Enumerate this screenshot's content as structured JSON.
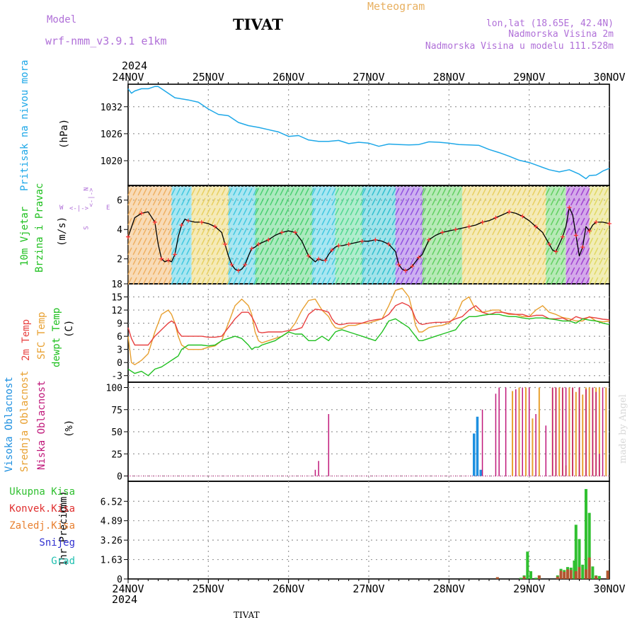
{
  "header": {
    "model_label": "Model",
    "model_name": "wrf-nmm_v3.9.1 e1km",
    "station": "TIVAT",
    "chart_type": "Meteogram",
    "lonlat": "lon,lat (18.65E, 42.4N)",
    "elevation": "Nadmorska Visina 2m",
    "model_elevation": "Nadmorska Visina u modelu 111.528m",
    "year_top": "2024",
    "year_bottom": "2024",
    "footer_station": "TIVAT",
    "watermark": "made by Angel"
  },
  "x_axis": {
    "dates": [
      "24NOV",
      "25NOV",
      "26NOV",
      "27NOV",
      "28NOV",
      "29NOV",
      "30NOV"
    ],
    "range_hours": [
      0,
      144
    ]
  },
  "colors": {
    "pressure": "#1ea8e8",
    "temp2m": "#e84040",
    "sfc_temp": "#e8a030",
    "dewpt": "#20c020",
    "wind_speed": "#000000",
    "wind_markers": "#ff3030",
    "high_cloud": "#1e90e0",
    "mid_cloud": "#e8a030",
    "low_cloud": "#c0187a",
    "total_precip": "#30c030",
    "convective": "#e03030",
    "frozen": "#e88030",
    "snow": "#3030d0",
    "hail": "#20c0b0",
    "title_purple": "#b070d8",
    "meteogram_orange": "#e8b060"
  },
  "chart_data": [
    {
      "type": "line",
      "panel": "pressure",
      "ylabel": "Pritisak na nivou mora",
      "unit": "(hPa)",
      "yticks": [
        "1020",
        "1026",
        "1032"
      ],
      "ylim": [
        1014.5,
        1037
      ],
      "x_hours": [
        0,
        1,
        2,
        4,
        6,
        8,
        9,
        12,
        14,
        18,
        21,
        24,
        27,
        30,
        33,
        36,
        39,
        42,
        45,
        48,
        51,
        54,
        57,
        60,
        63,
        66,
        69,
        72,
        75,
        78,
        81,
        84,
        87,
        90,
        93,
        96,
        99,
        102,
        105,
        108,
        111,
        114,
        117,
        120,
        123,
        126,
        129,
        132,
        135,
        137,
        138,
        140,
        141,
        142,
        144
      ],
      "series": [
        {
          "name": "Pritisak na nivou mora",
          "values": [
            1036,
            1035,
            1035.5,
            1036,
            1036,
            1036.5,
            1036.5,
            1035,
            1034,
            1033.5,
            1033,
            1031.5,
            1030.3,
            1030,
            1028.5,
            1027.8,
            1027.4,
            1026.9,
            1026.4,
            1025.4,
            1025.6,
            1024.6,
            1024.3,
            1024.3,
            1024.5,
            1023.8,
            1024.1,
            1023.9,
            1023.2,
            1023.7,
            1023.6,
            1023.5,
            1023.6,
            1024.2,
            1024.1,
            1023.9,
            1023.6,
            1023.5,
            1023.4,
            1022.5,
            1021.8,
            1021.0,
            1020.1,
            1019.6,
            1018.8,
            1018.0,
            1017.5,
            1018.0,
            1017.0,
            1016.0,
            1016.7,
            1016.8,
            1017.2,
            1017.7,
            1018.3
          ]
        }
      ]
    },
    {
      "type": "line",
      "panel": "wind",
      "ylabel": "10m Vjetar",
      "ylabel2": "Brzina i Pravac",
      "unit": "(m/s)",
      "yticks": [
        "2",
        "4",
        "6"
      ],
      "ylim": [
        0.3,
        7
      ],
      "compass": {
        "n": "N",
        "s": "S",
        "e": "E",
        "w": "W"
      },
      "x_hours": [
        0,
        2,
        4,
        6,
        8,
        9,
        10,
        11,
        12,
        13,
        14,
        15,
        16,
        17,
        18,
        20,
        22,
        24,
        26,
        28,
        29,
        30,
        31,
        32,
        33,
        34,
        35,
        36,
        37,
        38,
        39,
        40,
        42,
        44,
        46,
        48,
        50,
        52,
        54,
        56,
        57,
        58,
        59,
        60,
        61,
        62,
        63,
        64,
        66,
        68,
        70,
        72,
        74,
        76,
        78,
        80,
        81,
        82,
        83,
        84,
        85,
        86,
        87,
        88,
        90,
        92,
        94,
        96,
        98,
        100,
        102,
        104,
        106,
        108,
        110,
        112,
        114,
        116,
        118,
        120,
        122,
        124,
        126,
        127,
        128,
        129,
        130,
        131,
        132,
        133,
        134,
        135,
        136,
        137,
        138,
        139,
        140,
        142,
        144
      ],
      "series": [
        {
          "name": "10m Vjetar",
          "values": [
            3.5,
            4.8,
            5.1,
            5.2,
            4.5,
            3.0,
            2.0,
            1.8,
            1.9,
            1.8,
            2.3,
            3.5,
            4.3,
            4.7,
            4.6,
            4.5,
            4.5,
            4.4,
            4.2,
            3.8,
            3.0,
            2.2,
            1.6,
            1.3,
            1.2,
            1.3,
            1.6,
            2.2,
            2.7,
            2.8,
            3.0,
            3.1,
            3.3,
            3.6,
            3.8,
            3.9,
            3.8,
            3.2,
            2.2,
            1.8,
            2.0,
            1.9,
            1.9,
            2.3,
            2.6,
            2.8,
            2.9,
            2.9,
            3.0,
            3.1,
            3.2,
            3.2,
            3.3,
            3.2,
            3.0,
            2.5,
            1.6,
            1.3,
            1.2,
            1.3,
            1.5,
            1.8,
            2.1,
            2.3,
            3.3,
            3.6,
            3.8,
            3.9,
            4.0,
            4.1,
            4.2,
            4.3,
            4.5,
            4.6,
            4.8,
            5.0,
            5.2,
            5.1,
            4.9,
            4.6,
            4.2,
            3.8,
            3.0,
            2.6,
            2.5,
            3.0,
            3.5,
            4.2,
            5.5,
            5.0,
            3.6,
            2.2,
            2.8,
            4.2,
            3.9,
            4.3,
            4.5,
            4.5,
            4.4
          ]
        }
      ]
    },
    {
      "type": "line",
      "panel": "temperature",
      "ylabel": [
        "2m Temp",
        "SFC Temp",
        "dewpt Temp"
      ],
      "unit": "(C)",
      "yticks": [
        "-3",
        "0",
        "3",
        "6",
        "9",
        "12",
        "15",
        "18"
      ],
      "ylim": [
        -4.5,
        18
      ],
      "x_hours": [
        0,
        1,
        2,
        4,
        6,
        8,
        10,
        12,
        13,
        14,
        15,
        16,
        18,
        20,
        22,
        24,
        26,
        28,
        30,
        32,
        34,
        36,
        37,
        38,
        39,
        40,
        42,
        44,
        46,
        48,
        50,
        52,
        54,
        56,
        58,
        60,
        61,
        62,
        63,
        64,
        66,
        68,
        70,
        72,
        74,
        76,
        78,
        80,
        82,
        84,
        85,
        86,
        87,
        88,
        90,
        92,
        94,
        96,
        98,
        100,
        102,
        104,
        106,
        108,
        109,
        110,
        111,
        112,
        114,
        116,
        118,
        120,
        122,
        124,
        126,
        128,
        130,
        132,
        134,
        136,
        138,
        140,
        142,
        144
      ],
      "series": [
        {
          "name": "2m Temp",
          "values": [
            8,
            5.5,
            4,
            4,
            4,
            6,
            7.5,
            9,
            9.5,
            9,
            7,
            6,
            6,
            6,
            6,
            5.8,
            5.8,
            6,
            8,
            10,
            11.5,
            11.5,
            10.5,
            9,
            7,
            6.8,
            7,
            7,
            7,
            7.3,
            7.5,
            8,
            11,
            12.2,
            12,
            11.5,
            10,
            9,
            8.7,
            8.7,
            9,
            9,
            9,
            9.5,
            9.8,
            10,
            11,
            13,
            13.7,
            13,
            12,
            10,
            9,
            8.7,
            9,
            9.2,
            9.2,
            9.3,
            10,
            10.5,
            12,
            13,
            11.5,
            11,
            11.2,
            11.5,
            11.5,
            11.5,
            11.2,
            11,
            11,
            10.5,
            10.8,
            10.8,
            10,
            10,
            10.2,
            9.5,
            10.5,
            10,
            10.4,
            10.2,
            9.9,
            9.8
          ]
        },
        {
          "name": "SFC Temp",
          "values": [
            6,
            0,
            -0.5,
            0.5,
            2,
            7,
            11,
            12,
            11,
            9,
            6,
            4,
            3,
            3,
            3,
            3.5,
            3.8,
            5,
            9,
            13,
            14.5,
            13,
            11,
            7,
            5,
            4.5,
            5,
            5.5,
            6,
            7,
            9,
            12,
            14.2,
            14.5,
            12,
            10.5,
            9,
            8,
            7.8,
            7.8,
            8.5,
            8.5,
            9,
            9,
            9.5,
            10,
            13,
            16.5,
            17,
            15,
            12,
            8.5,
            7,
            7,
            8,
            8.3,
            8.5,
            9,
            10.5,
            14,
            15,
            12,
            11.5,
            11.8,
            12,
            12,
            12,
            11.5,
            11,
            11,
            10.5,
            10.5,
            12,
            13,
            11.5,
            11,
            10.3,
            10,
            9.5,
            9.5,
            10.5,
            9.5,
            9.3,
            9.5
          ]
        },
        {
          "name": "dewpt Temp",
          "values": [
            -1.5,
            -2,
            -2.5,
            -2,
            -3,
            -1.5,
            -1,
            0,
            0.5,
            1,
            1.5,
            3,
            4,
            4,
            4,
            3.8,
            4,
            5,
            5.5,
            6,
            5.5,
            4,
            3,
            3.5,
            3.5,
            4,
            4.5,
            5,
            6,
            7,
            6.5,
            6.5,
            5,
            5,
            6,
            5,
            6,
            7,
            7.3,
            7.5,
            7,
            6.5,
            6,
            5.5,
            5,
            7,
            9.5,
            10,
            9,
            8,
            7,
            6,
            5,
            5,
            5.5,
            6,
            6.5,
            7,
            7.5,
            9.5,
            10.5,
            10.5,
            10.8,
            11,
            11,
            11,
            11,
            10.8,
            10.5,
            10.5,
            10.2,
            10,
            10.2,
            10.2,
            10,
            9.8,
            9.5,
            9.5,
            9,
            10,
            9.7,
            9.5,
            9,
            8.7
          ]
        }
      ]
    },
    {
      "type": "bar",
      "panel": "cloud",
      "ylabel": [
        "Visoka Oblacnost",
        "Srednja Oblacnost",
        "Niska Oblacnost"
      ],
      "unit": "(%)",
      "yticks": [
        "0",
        "25",
        "50",
        "75",
        "100"
      ],
      "ylim": [
        -6,
        106
      ],
      "series": [
        {
          "name": "Visoka Oblacnost",
          "bars": [
            [
              103.5,
              48
            ],
            [
              104.5,
              67
            ],
            [
              105.5,
              7
            ]
          ]
        },
        {
          "name": "Srednja Oblacnost",
          "bars": [
            [
              115,
              96
            ],
            [
              117,
              100
            ],
            [
              119,
              100
            ],
            [
              121,
              65
            ],
            [
              123,
              100
            ],
            [
              127,
              100
            ],
            [
              128,
              100
            ],
            [
              129,
              100
            ],
            [
              130,
              100
            ],
            [
              131,
              12
            ],
            [
              132,
              100
            ],
            [
              133,
              100
            ],
            [
              134,
              95
            ],
            [
              135,
              100
            ],
            [
              136,
              92
            ],
            [
              137,
              100
            ],
            [
              138,
              100
            ],
            [
              139,
              100
            ],
            [
              140,
              100
            ],
            [
              141,
              100
            ],
            [
              143,
              100
            ]
          ]
        },
        {
          "name": "Niska Oblacnost",
          "bars": [
            [
              56,
              7
            ],
            [
              57,
              17
            ],
            [
              60,
              70
            ],
            [
              106,
              75
            ],
            [
              110,
              93
            ],
            [
              111,
              100
            ],
            [
              113,
              100
            ],
            [
              116,
              98
            ],
            [
              118,
              100
            ],
            [
              120,
              100
            ],
            [
              122,
              70
            ],
            [
              125,
              57
            ],
            [
              127,
              100
            ],
            [
              128,
              100
            ],
            [
              130,
              100
            ],
            [
              131,
              100
            ],
            [
              133,
              100
            ],
            [
              135,
              100
            ],
            [
              137,
              98
            ],
            [
              139,
              100
            ],
            [
              140,
              95
            ],
            [
              141,
              25
            ],
            [
              142,
              100
            ]
          ]
        }
      ]
    },
    {
      "type": "bar",
      "panel": "precip",
      "ylabel": "1hr Precip",
      "unit": "(mm)",
      "yticks": [
        "0",
        "1.63",
        "3.26",
        "4.89",
        "6.52"
      ],
      "ylim": [
        0,
        8.2
      ],
      "legend": [
        "Ukupna Kisa",
        "Konvek.Kisa",
        "Zaledj.Kisa",
        "Snijeg",
        "Grad"
      ],
      "series": [
        {
          "name": "Ukupna Kisa",
          "bars": [
            [
              110.5,
              0.15
            ],
            [
              117.5,
              0.1
            ],
            [
              118.5,
              0.3
            ],
            [
              119.5,
              2.3
            ],
            [
              120.5,
              0.65
            ],
            [
              122,
              0.1
            ],
            [
              123,
              0.3
            ],
            [
              128.5,
              0.3
            ],
            [
              129.5,
              0.85
            ],
            [
              130.5,
              0.75
            ],
            [
              131.5,
              1.0
            ],
            [
              132.5,
              0.95
            ],
            [
              133.5,
              1.55
            ],
            [
              134,
              4.55
            ],
            [
              135,
              3.35
            ],
            [
              136,
              1.2
            ],
            [
              137,
              7.55
            ],
            [
              138,
              5.55
            ],
            [
              139,
              1.05
            ],
            [
              140,
              0.3
            ],
            [
              141,
              0.25
            ],
            [
              143.5,
              0.7
            ]
          ]
        },
        {
          "name": "Konvek.Kisa",
          "bars": [
            [
              110.5,
              0.15
            ],
            [
              118.5,
              0.2
            ],
            [
              123,
              0.3
            ],
            [
              128.5,
              0.2
            ],
            [
              129.5,
              0.7
            ],
            [
              130.5,
              0.6
            ],
            [
              131.5,
              0.8
            ],
            [
              132.5,
              0.75
            ],
            [
              134,
              0.65
            ],
            [
              135,
              1.0
            ],
            [
              137,
              0.8
            ],
            [
              138,
              1.8
            ],
            [
              140,
              0.25
            ],
            [
              143.5,
              0.7
            ]
          ]
        }
      ]
    }
  ]
}
